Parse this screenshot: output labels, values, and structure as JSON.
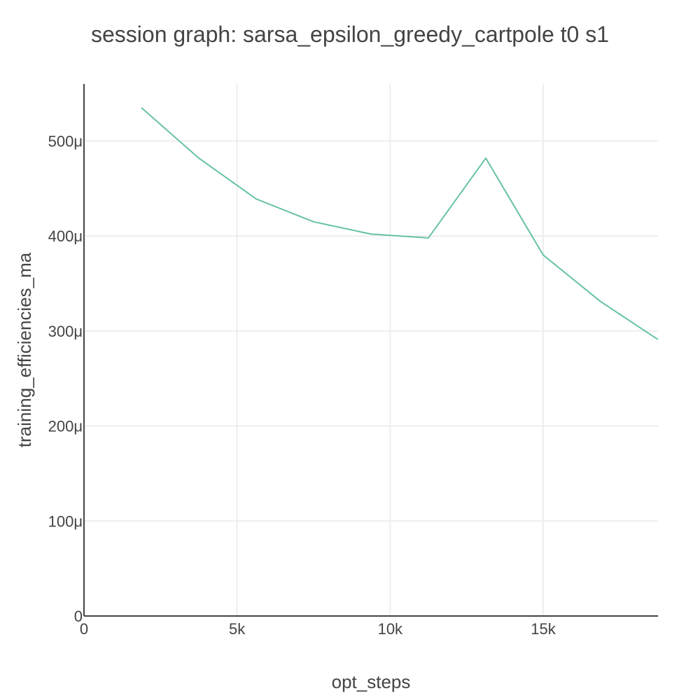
{
  "chart_data": {
    "type": "line",
    "title": "session graph: sarsa_epsilon_greedy_cartpole t0 s1",
    "xlabel": "opt_steps",
    "ylabel": "training_efficiencies_ma",
    "xlim": [
      0,
      18750
    ],
    "ylim": [
      0,
      0.00056
    ],
    "x_ticks": [
      {
        "value": 0,
        "label": "0"
      },
      {
        "value": 5000,
        "label": "5k"
      },
      {
        "value": 10000,
        "label": "10k"
      },
      {
        "value": 15000,
        "label": "15k"
      }
    ],
    "y_ticks": [
      {
        "value": 0,
        "label": "0"
      },
      {
        "value": 0.0001,
        "label": "100μ"
      },
      {
        "value": 0.0002,
        "label": "200μ"
      },
      {
        "value": 0.0003,
        "label": "300μ"
      },
      {
        "value": 0.0004,
        "label": "400μ"
      },
      {
        "value": 0.0005,
        "label": "500μ"
      }
    ],
    "grid": true,
    "series": [
      {
        "color": "#66c2a5",
        "x": [
          1875,
          3750,
          5625,
          7500,
          9375,
          11250,
          13125,
          15000,
          16875,
          18750
        ],
        "y": [
          0.000535,
          0.000482,
          0.000439,
          0.000415,
          0.000402,
          0.000398,
          0.000482,
          0.00038,
          0.000331,
          0.000291
        ]
      }
    ]
  }
}
